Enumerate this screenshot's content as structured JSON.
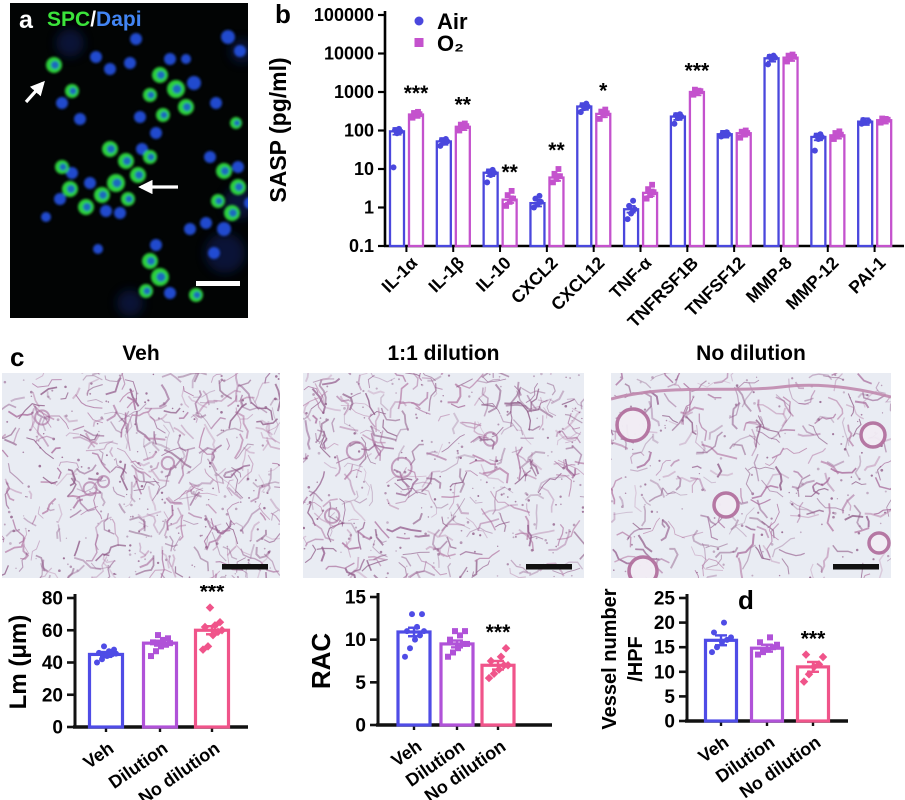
{
  "panels": {
    "a_label": "a",
    "b_label": "b",
    "c_label": "c",
    "d_label": "d"
  },
  "panel_a": {
    "marker_label": "SPC",
    "separator": "/",
    "counterstain_label": "Dapi",
    "colors": {
      "spc": "#3be33b",
      "dapi": "#4285f4",
      "separator": "#ffffff"
    }
  },
  "panel_c": {
    "headers": [
      "Veh",
      "1:1 dilution",
      "No dilution"
    ]
  },
  "colors": {
    "air": "#4a47dd",
    "o2": "#c452cd",
    "veh": "#4f4ce6",
    "dilution": "#b052d8",
    "no_dilution": "#f0548a",
    "axis": "#111111",
    "histology_bg": "#e9ecf3",
    "histology_tissue": "#a86b9b"
  },
  "chart_data": [
    {
      "id": "sasp",
      "type": "bar",
      "scale": "log",
      "ylabel": "SASP (pg/ml)",
      "ylim": [
        0.1,
        100000
      ],
      "yticks": [
        "0.1",
        "1",
        "10",
        "100",
        "1000",
        "10000",
        "100000"
      ],
      "categories": [
        "IL-1α",
        "IL-1β",
        "IL-10",
        "CXCL2",
        "CXCL12",
        "TNF-α",
        "TNFRSF1B",
        "TNFSF12",
        "MMP-8",
        "MMP-12",
        "PAI-1"
      ],
      "legend": [
        "Air",
        "O₂"
      ],
      "legend_position": "top-left-inside",
      "series": [
        {
          "name": "Air",
          "marker": "circle",
          "values": [
            95,
            52,
            8,
            1.3,
            420,
            0.9,
            230,
            80,
            7500,
            68,
            170
          ],
          "points": [
            [
              11,
              85,
              95,
              102,
              110
            ],
            [
              40,
              48,
              52,
              56,
              60
            ],
            [
              4.5,
              7,
              8,
              8.5,
              9.5
            ],
            [
              1.0,
              1.2,
              1.4,
              1.7,
              2.0
            ],
            [
              300,
              380,
              420,
              450,
              500
            ],
            [
              0.5,
              0.7,
              0.9,
              1.1,
              1.5
            ],
            [
              150,
              210,
              230,
              250,
              265
            ],
            [
              70,
              76,
              80,
              85,
              90
            ],
            [
              5200,
              7000,
              7800,
              8300,
              8800
            ],
            [
              30,
              60,
              68,
              73,
              80
            ],
            [
              150,
              165,
              175,
              188
            ]
          ]
        },
        {
          "name": "O₂",
          "marker": "square",
          "values": [
            260,
            125,
            1.6,
            6,
            270,
            2.4,
            1000,
            85,
            7800,
            75,
            185
          ],
          "points": [
            [
              215,
              245,
              265,
              285,
              305
            ],
            [
              100,
              118,
              130,
              142,
              152
            ],
            [
              1.1,
              1.4,
              1.7,
              2.1,
              2.7
            ],
            [
              4.5,
              5.5,
              6.5,
              7.5,
              10
            ],
            [
              200,
              250,
              280,
              310,
              350
            ],
            [
              1.7,
              2.1,
              2.5,
              3.0,
              3.9
            ],
            [
              850,
              950,
              1050,
              1150
            ],
            [
              65,
              78,
              86,
              93,
              100
            ],
            [
              6200,
              7500,
              8200,
              8800,
              9400
            ],
            [
              60,
              70,
              78,
              86,
              95
            ],
            [
              160,
              175,
              190,
              205
            ]
          ]
        }
      ],
      "sig": [
        "***",
        "**",
        "**",
        "**",
        "*",
        "",
        "***",
        "",
        "",
        "",
        ""
      ]
    },
    {
      "id": "lm",
      "type": "bar",
      "ylabel": "Lm (μm)",
      "ylim": [
        0,
        80
      ],
      "yticks": [
        "0",
        "20",
        "40",
        "60",
        "80"
      ],
      "categories": [
        "Veh",
        "Dilution",
        "No dilution"
      ],
      "values": [
        45,
        52,
        60
      ],
      "errors": [
        1.5,
        1.5,
        2.5
      ],
      "points": [
        [
          40,
          42,
          44,
          45,
          45.5,
          46,
          47,
          48,
          50
        ],
        [
          44,
          47,
          50,
          51,
          52,
          52.5,
          54,
          55,
          57
        ],
        [
          48,
          50,
          57,
          59,
          60,
          62,
          63,
          65,
          74
        ]
      ],
      "sig": [
        "",
        "",
        "***"
      ]
    },
    {
      "id": "rac",
      "type": "bar",
      "ylabel": "RAC",
      "ylim": [
        0,
        15
      ],
      "yticks": [
        "0",
        "5",
        "10",
        "15"
      ],
      "categories": [
        "Veh",
        "Dilution",
        "No dilution"
      ],
      "values": [
        10.9,
        9.5,
        7
      ],
      "errors": [
        0.5,
        0.4,
        0.5
      ],
      "points": [
        [
          8,
          9,
          10,
          10.5,
          11,
          11,
          11.5,
          13,
          13
        ],
        [
          8,
          8.5,
          9,
          9.5,
          9.5,
          10,
          10.5,
          11,
          11
        ],
        [
          5.5,
          6,
          6.5,
          7,
          7,
          7.5,
          8,
          9
        ]
      ],
      "sig": [
        "",
        "",
        "***"
      ]
    },
    {
      "id": "vessel",
      "type": "bar",
      "ylabel_lines": [
        "Vessel number",
        "/HPF"
      ],
      "ylim": [
        0,
        25
      ],
      "yticks": [
        "0",
        "5",
        "10",
        "15",
        "20",
        "25"
      ],
      "categories": [
        "Veh",
        "Dilution",
        "No dilution"
      ],
      "values": [
        16.4,
        14.8,
        11
      ],
      "errors": [
        1,
        0.7,
        1
      ],
      "points": [
        [
          14,
          15,
          16,
          16.5,
          17,
          18,
          20
        ],
        [
          13.5,
          14,
          14.5,
          15,
          15.5,
          16,
          17
        ],
        [
          8,
          9.5,
          11,
          11.5,
          13,
          13.5
        ]
      ],
      "sig": [
        "",
        "",
        "***"
      ]
    }
  ]
}
